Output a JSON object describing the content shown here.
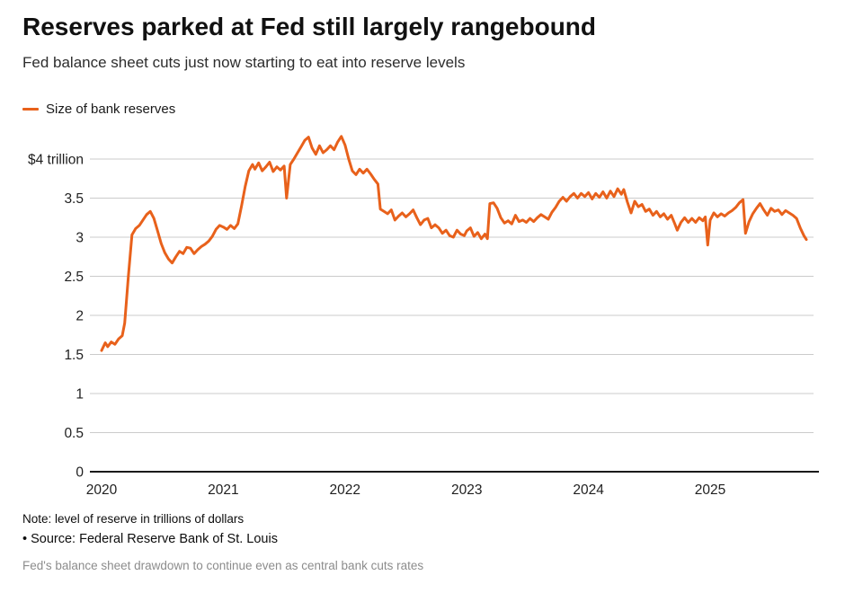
{
  "header": {
    "title": "Reserves parked at Fed still largely rangebound",
    "subtitle": "Fed balance sheet cuts just now starting to eat into reserve levels"
  },
  "legend": {
    "label": "Size of bank reserves"
  },
  "colors": {
    "line": "#E8611B",
    "grid": "#CBCBCB",
    "axis": "#1A1A1A",
    "tick_text": "#1F1F1F",
    "kicker_text": "#8C8C8C"
  },
  "footer": {
    "note": "Note: level of reserve in trillions of dollars",
    "source": "• Source: Federal Reserve Bank of St. Louis",
    "kicker": "Fed's balance sheet drawdown to continue even as central bank cuts rates"
  },
  "chart_data": {
    "type": "line",
    "title": "Reserves parked at Fed still largely rangebound",
    "subtitle": "Fed balance sheet cuts just now starting to eat into reserve levels",
    "xlabel": "",
    "ylabel": "trillions of dollars",
    "ylim": [
      0,
      4.35
    ],
    "xlim": [
      2020,
      2025.9
    ],
    "grid": "horizontal",
    "legend_position": "top-left",
    "y_ticks": [
      {
        "value": 4,
        "label": "$4 trillion"
      },
      {
        "value": 3.5,
        "label": "3.5"
      },
      {
        "value": 3,
        "label": "3"
      },
      {
        "value": 2.5,
        "label": "2.5"
      },
      {
        "value": 2,
        "label": "2"
      },
      {
        "value": 1.5,
        "label": "1.5"
      },
      {
        "value": 1,
        "label": "1"
      },
      {
        "value": 0.5,
        "label": "0.5"
      },
      {
        "value": 0,
        "label": "0"
      }
    ],
    "x_ticks": [
      {
        "value": 2020,
        "label": "2020"
      },
      {
        "value": 2021,
        "label": "2021"
      },
      {
        "value": 2022,
        "label": "2022"
      },
      {
        "value": 2023,
        "label": "2023"
      },
      {
        "value": 2024,
        "label": "2024"
      },
      {
        "value": 2025,
        "label": "2025"
      }
    ],
    "series": [
      {
        "name": "Size of bank reserves",
        "unit": "trillion USD",
        "points": [
          [
            2020.0,
            1.55
          ],
          [
            2020.03,
            1.65
          ],
          [
            2020.05,
            1.6
          ],
          [
            2020.08,
            1.66
          ],
          [
            2020.11,
            1.63
          ],
          [
            2020.14,
            1.7
          ],
          [
            2020.17,
            1.74
          ],
          [
            2020.19,
            1.9
          ],
          [
            2020.22,
            2.5
          ],
          [
            2020.25,
            3.03
          ],
          [
            2020.28,
            3.11
          ],
          [
            2020.31,
            3.15
          ],
          [
            2020.34,
            3.22
          ],
          [
            2020.37,
            3.29
          ],
          [
            2020.4,
            3.33
          ],
          [
            2020.43,
            3.24
          ],
          [
            2020.46,
            3.08
          ],
          [
            2020.49,
            2.92
          ],
          [
            2020.52,
            2.8
          ],
          [
            2020.55,
            2.72
          ],
          [
            2020.58,
            2.67
          ],
          [
            2020.61,
            2.75
          ],
          [
            2020.64,
            2.82
          ],
          [
            2020.67,
            2.79
          ],
          [
            2020.7,
            2.87
          ],
          [
            2020.73,
            2.86
          ],
          [
            2020.76,
            2.79
          ],
          [
            2020.79,
            2.84
          ],
          [
            2020.82,
            2.88
          ],
          [
            2020.85,
            2.91
          ],
          [
            2020.88,
            2.95
          ],
          [
            2020.91,
            3.01
          ],
          [
            2020.94,
            3.1
          ],
          [
            2020.97,
            3.15
          ],
          [
            2021.0,
            3.13
          ],
          [
            2021.03,
            3.1
          ],
          [
            2021.06,
            3.15
          ],
          [
            2021.09,
            3.11
          ],
          [
            2021.12,
            3.17
          ],
          [
            2021.15,
            3.4
          ],
          [
            2021.18,
            3.65
          ],
          [
            2021.21,
            3.85
          ],
          [
            2021.24,
            3.93
          ],
          [
            2021.26,
            3.87
          ],
          [
            2021.29,
            3.95
          ],
          [
            2021.32,
            3.85
          ],
          [
            2021.35,
            3.9
          ],
          [
            2021.38,
            3.96
          ],
          [
            2021.41,
            3.84
          ],
          [
            2021.44,
            3.9
          ],
          [
            2021.47,
            3.86
          ],
          [
            2021.5,
            3.91
          ],
          [
            2021.52,
            3.5
          ],
          [
            2021.55,
            3.93
          ],
          [
            2021.58,
            4.0
          ],
          [
            2021.61,
            4.08
          ],
          [
            2021.64,
            4.16
          ],
          [
            2021.67,
            4.24
          ],
          [
            2021.7,
            4.28
          ],
          [
            2021.73,
            4.14
          ],
          [
            2021.76,
            4.06
          ],
          [
            2021.79,
            4.17
          ],
          [
            2021.82,
            4.08
          ],
          [
            2021.85,
            4.12
          ],
          [
            2021.88,
            4.17
          ],
          [
            2021.91,
            4.12
          ],
          [
            2021.94,
            4.22
          ],
          [
            2021.97,
            4.29
          ],
          [
            2022.0,
            4.18
          ],
          [
            2022.03,
            4.0
          ],
          [
            2022.06,
            3.85
          ],
          [
            2022.09,
            3.8
          ],
          [
            2022.12,
            3.87
          ],
          [
            2022.15,
            3.82
          ],
          [
            2022.18,
            3.87
          ],
          [
            2022.21,
            3.81
          ],
          [
            2022.24,
            3.74
          ],
          [
            2022.27,
            3.68
          ],
          [
            2022.29,
            3.36
          ],
          [
            2022.32,
            3.33
          ],
          [
            2022.35,
            3.3
          ],
          [
            2022.38,
            3.35
          ],
          [
            2022.41,
            3.22
          ],
          [
            2022.44,
            3.27
          ],
          [
            2022.47,
            3.31
          ],
          [
            2022.5,
            3.26
          ],
          [
            2022.53,
            3.3
          ],
          [
            2022.56,
            3.35
          ],
          [
            2022.59,
            3.25
          ],
          [
            2022.62,
            3.16
          ],
          [
            2022.65,
            3.22
          ],
          [
            2022.68,
            3.24
          ],
          [
            2022.71,
            3.12
          ],
          [
            2022.74,
            3.16
          ],
          [
            2022.77,
            3.12
          ],
          [
            2022.8,
            3.05
          ],
          [
            2022.83,
            3.09
          ],
          [
            2022.86,
            3.02
          ],
          [
            2022.89,
            3.0
          ],
          [
            2022.92,
            3.09
          ],
          [
            2022.95,
            3.04
          ],
          [
            2022.98,
            3.02
          ],
          [
            2023.0,
            3.08
          ],
          [
            2023.03,
            3.12
          ],
          [
            2023.06,
            3.01
          ],
          [
            2023.09,
            3.06
          ],
          [
            2023.12,
            2.98
          ],
          [
            2023.15,
            3.04
          ],
          [
            2023.17,
            2.98
          ],
          [
            2023.19,
            3.43
          ],
          [
            2023.22,
            3.44
          ],
          [
            2023.25,
            3.37
          ],
          [
            2023.28,
            3.25
          ],
          [
            2023.31,
            3.18
          ],
          [
            2023.34,
            3.21
          ],
          [
            2023.37,
            3.17
          ],
          [
            2023.4,
            3.28
          ],
          [
            2023.43,
            3.2
          ],
          [
            2023.46,
            3.22
          ],
          [
            2023.49,
            3.19
          ],
          [
            2023.52,
            3.24
          ],
          [
            2023.55,
            3.2
          ],
          [
            2023.58,
            3.25
          ],
          [
            2023.61,
            3.29
          ],
          [
            2023.64,
            3.26
          ],
          [
            2023.67,
            3.23
          ],
          [
            2023.7,
            3.32
          ],
          [
            2023.73,
            3.38
          ],
          [
            2023.76,
            3.46
          ],
          [
            2023.79,
            3.51
          ],
          [
            2023.82,
            3.46
          ],
          [
            2023.85,
            3.52
          ],
          [
            2023.88,
            3.56
          ],
          [
            2023.91,
            3.5
          ],
          [
            2023.94,
            3.56
          ],
          [
            2023.97,
            3.52
          ],
          [
            2024.0,
            3.57
          ],
          [
            2024.03,
            3.49
          ],
          [
            2024.06,
            3.56
          ],
          [
            2024.09,
            3.51
          ],
          [
            2024.12,
            3.58
          ],
          [
            2024.15,
            3.5
          ],
          [
            2024.18,
            3.59
          ],
          [
            2024.21,
            3.52
          ],
          [
            2024.24,
            3.62
          ],
          [
            2024.27,
            3.55
          ],
          [
            2024.29,
            3.61
          ],
          [
            2024.32,
            3.45
          ],
          [
            2024.35,
            3.31
          ],
          [
            2024.38,
            3.46
          ],
          [
            2024.41,
            3.39
          ],
          [
            2024.44,
            3.42
          ],
          [
            2024.47,
            3.33
          ],
          [
            2024.5,
            3.36
          ],
          [
            2024.53,
            3.28
          ],
          [
            2024.56,
            3.33
          ],
          [
            2024.59,
            3.26
          ],
          [
            2024.62,
            3.3
          ],
          [
            2024.65,
            3.23
          ],
          [
            2024.68,
            3.28
          ],
          [
            2024.71,
            3.17
          ],
          [
            2024.73,
            3.09
          ],
          [
            2024.76,
            3.19
          ],
          [
            2024.79,
            3.25
          ],
          [
            2024.82,
            3.19
          ],
          [
            2024.85,
            3.24
          ],
          [
            2024.88,
            3.19
          ],
          [
            2024.91,
            3.25
          ],
          [
            2024.94,
            3.21
          ],
          [
            2024.96,
            3.26
          ],
          [
            2024.98,
            2.9
          ],
          [
            2025.0,
            3.22
          ],
          [
            2025.03,
            3.31
          ],
          [
            2025.06,
            3.26
          ],
          [
            2025.09,
            3.3
          ],
          [
            2025.12,
            3.27
          ],
          [
            2025.15,
            3.31
          ],
          [
            2025.18,
            3.34
          ],
          [
            2025.21,
            3.38
          ],
          [
            2025.24,
            3.44
          ],
          [
            2025.27,
            3.48
          ],
          [
            2025.29,
            3.05
          ],
          [
            2025.32,
            3.2
          ],
          [
            2025.35,
            3.3
          ],
          [
            2025.38,
            3.37
          ],
          [
            2025.41,
            3.43
          ],
          [
            2025.44,
            3.35
          ],
          [
            2025.47,
            3.28
          ],
          [
            2025.5,
            3.37
          ],
          [
            2025.53,
            3.33
          ],
          [
            2025.56,
            3.35
          ],
          [
            2025.59,
            3.29
          ],
          [
            2025.62,
            3.34
          ],
          [
            2025.65,
            3.31
          ],
          [
            2025.68,
            3.28
          ],
          [
            2025.71,
            3.24
          ],
          [
            2025.74,
            3.12
          ],
          [
            2025.77,
            3.02
          ],
          [
            2025.79,
            2.97
          ]
        ]
      }
    ]
  }
}
